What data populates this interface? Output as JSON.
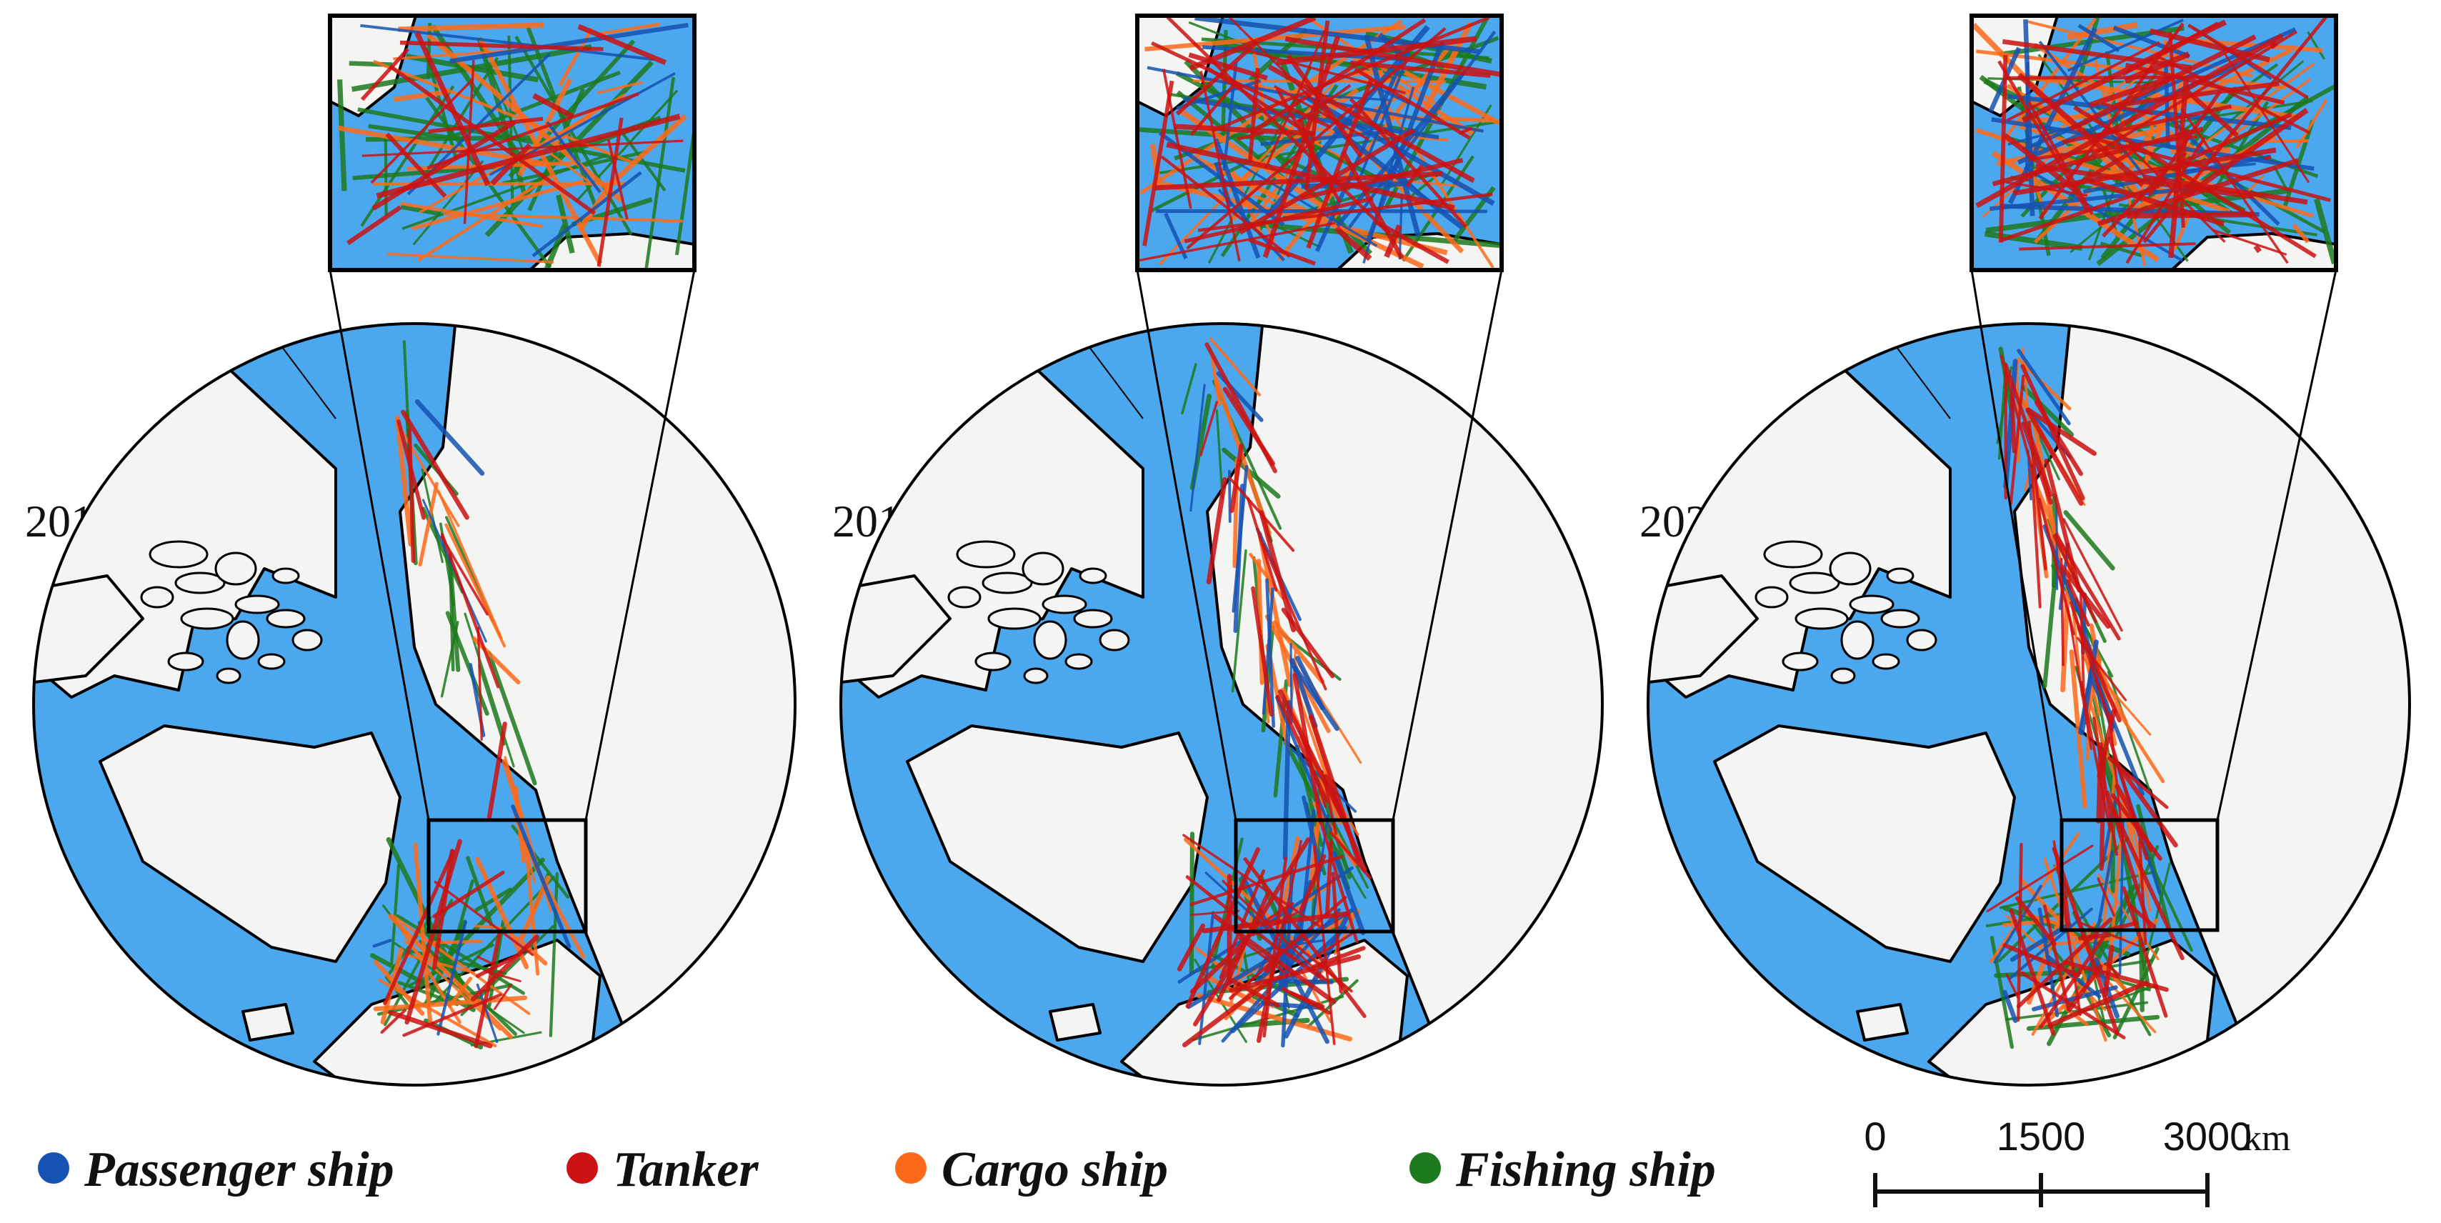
{
  "colors": {
    "ocean": "#4ba8ee",
    "land": "#f4f4f2",
    "outline": "#000000",
    "passenger": "#1652b2",
    "tanker": "#cc1212",
    "cargo": "#ff6a1a",
    "fishing": "#1e7a1e"
  },
  "panels": [
    {
      "year": "2015",
      "traffic": {
        "passenger": 0.1,
        "tanker": 0.3,
        "cargo": 0.4,
        "fishing": 0.6
      }
    },
    {
      "year": "2018",
      "traffic": {
        "passenger": 0.5,
        "tanker": 0.8,
        "cargo": 0.5,
        "fishing": 0.5
      }
    },
    {
      "year": "2020",
      "traffic": {
        "passenger": 0.35,
        "tanker": 0.9,
        "cargo": 0.55,
        "fishing": 0.6
      }
    }
  ],
  "legend": [
    {
      "label": "Passenger ship",
      "color": "#1652b2",
      "icon": "dot"
    },
    {
      "label": "Tanker",
      "color": "#cc1212",
      "icon": "dot"
    },
    {
      "label": "Cargo ship",
      "color": "#ff6a1a",
      "icon": "dot"
    },
    {
      "label": "Fishing ship",
      "color": "#1e7a1e",
      "icon": "dot"
    }
  ],
  "scale_bar": {
    "ticks": [
      "0",
      "1500",
      "3000"
    ],
    "unit": "km"
  }
}
